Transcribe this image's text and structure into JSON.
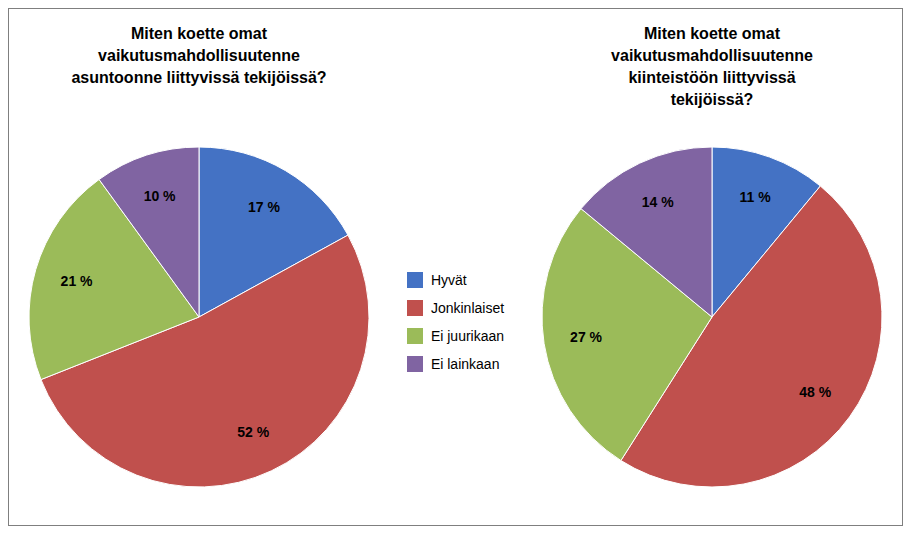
{
  "chart_data": [
    {
      "type": "pie",
      "title": "Miten koette omat\nvaikutusmahdollisuutenne\nasuntoonne liittyvissä tekijöissä?",
      "categories": [
        "Hyvät",
        "Jonkinlaiset",
        "Ei juurikaan",
        "Ei lainkaan"
      ],
      "values": [
        17,
        52,
        21,
        10
      ],
      "value_labels": [
        "17 %",
        "52 %",
        "21 %",
        "10 %"
      ],
      "colors": [
        "#4472C4",
        "#C0504D",
        "#9BBB59",
        "#8064A2"
      ],
      "data_labels": true,
      "legend": "center"
    },
    {
      "type": "pie",
      "title": "Miten koette omat\nvaikutusmahdollisuutenne\nkiinteistöön liittyvissä\ntekijöissä?",
      "categories": [
        "Hyvät",
        "Jonkinlaiset",
        "Ei juurikaan",
        "Ei lainkaan"
      ],
      "values": [
        11,
        48,
        27,
        14
      ],
      "value_labels": [
        "11 %",
        "48 %",
        "27 %",
        "14 %"
      ],
      "colors": [
        "#4472C4",
        "#C0504D",
        "#9BBB59",
        "#8064A2"
      ],
      "data_labels": true
    }
  ]
}
